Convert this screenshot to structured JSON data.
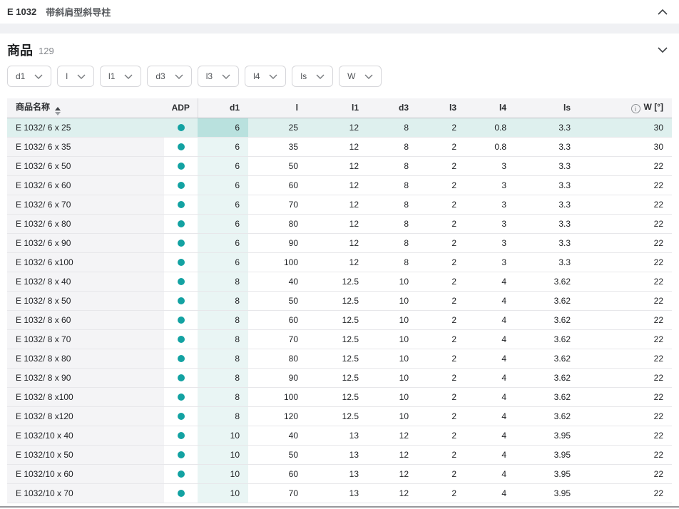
{
  "header": {
    "code": "E 1032",
    "title": "带斜肩型斜导柱"
  },
  "section": {
    "title": "商品",
    "count": "129"
  },
  "filters": {
    "chips": [
      {
        "label": "d1"
      },
      {
        "label": "l"
      },
      {
        "label": "l1"
      },
      {
        "label": "d3"
      },
      {
        "label": "l3"
      },
      {
        "label": "l4"
      },
      {
        "label": "ls"
      },
      {
        "label": "W"
      }
    ]
  },
  "table": {
    "columns": [
      {
        "key": "name",
        "label": "商品名称"
      },
      {
        "key": "adp",
        "label": "ADP"
      },
      {
        "key": "d1",
        "label": "d1"
      },
      {
        "key": "l",
        "label": "l"
      },
      {
        "key": "l1",
        "label": "l1"
      },
      {
        "key": "d3",
        "label": "d3"
      },
      {
        "key": "l3",
        "label": "l3"
      },
      {
        "key": "l4",
        "label": "l4"
      },
      {
        "key": "ls",
        "label": "ls"
      },
      {
        "key": "w",
        "label": "W [°]"
      }
    ],
    "rows": [
      {
        "name": "E 1032/ 6 x 25",
        "adp": true,
        "d1": "6",
        "l": "25",
        "l1": "12",
        "d3": "8",
        "l3": "2",
        "l4": "0.8",
        "ls": "3.3",
        "w": "30",
        "selected": true
      },
      {
        "name": "E 1032/ 6 x 35",
        "adp": true,
        "d1": "6",
        "l": "35",
        "l1": "12",
        "d3": "8",
        "l3": "2",
        "l4": "0.8",
        "ls": "3.3",
        "w": "30",
        "selected": false
      },
      {
        "name": "E 1032/ 6 x 50",
        "adp": true,
        "d1": "6",
        "l": "50",
        "l1": "12",
        "d3": "8",
        "l3": "2",
        "l4": "3",
        "ls": "3.3",
        "w": "22",
        "selected": false
      },
      {
        "name": "E 1032/ 6 x 60",
        "adp": true,
        "d1": "6",
        "l": "60",
        "l1": "12",
        "d3": "8",
        "l3": "2",
        "l4": "3",
        "ls": "3.3",
        "w": "22",
        "selected": false
      },
      {
        "name": "E 1032/ 6 x 70",
        "adp": true,
        "d1": "6",
        "l": "70",
        "l1": "12",
        "d3": "8",
        "l3": "2",
        "l4": "3",
        "ls": "3.3",
        "w": "22",
        "selected": false
      },
      {
        "name": "E 1032/ 6 x 80",
        "adp": true,
        "d1": "6",
        "l": "80",
        "l1": "12",
        "d3": "8",
        "l3": "2",
        "l4": "3",
        "ls": "3.3",
        "w": "22",
        "selected": false
      },
      {
        "name": "E 1032/ 6 x 90",
        "adp": true,
        "d1": "6",
        "l": "90",
        "l1": "12",
        "d3": "8",
        "l3": "2",
        "l4": "3",
        "ls": "3.3",
        "w": "22",
        "selected": false
      },
      {
        "name": "E 1032/ 6 x100",
        "adp": true,
        "d1": "6",
        "l": "100",
        "l1": "12",
        "d3": "8",
        "l3": "2",
        "l4": "3",
        "ls": "3.3",
        "w": "22",
        "selected": false
      },
      {
        "name": "E 1032/ 8 x 40",
        "adp": true,
        "d1": "8",
        "l": "40",
        "l1": "12.5",
        "d3": "10",
        "l3": "2",
        "l4": "4",
        "ls": "3.62",
        "w": "22",
        "selected": false
      },
      {
        "name": "E 1032/ 8 x 50",
        "adp": true,
        "d1": "8",
        "l": "50",
        "l1": "12.5",
        "d3": "10",
        "l3": "2",
        "l4": "4",
        "ls": "3.62",
        "w": "22",
        "selected": false
      },
      {
        "name": "E 1032/ 8 x 60",
        "adp": true,
        "d1": "8",
        "l": "60",
        "l1": "12.5",
        "d3": "10",
        "l3": "2",
        "l4": "4",
        "ls": "3.62",
        "w": "22",
        "selected": false
      },
      {
        "name": "E 1032/ 8 x 70",
        "adp": true,
        "d1": "8",
        "l": "70",
        "l1": "12.5",
        "d3": "10",
        "l3": "2",
        "l4": "4",
        "ls": "3.62",
        "w": "22",
        "selected": false
      },
      {
        "name": "E 1032/ 8 x 80",
        "adp": true,
        "d1": "8",
        "l": "80",
        "l1": "12.5",
        "d3": "10",
        "l3": "2",
        "l4": "4",
        "ls": "3.62",
        "w": "22",
        "selected": false
      },
      {
        "name": "E 1032/ 8 x 90",
        "adp": true,
        "d1": "8",
        "l": "90",
        "l1": "12.5",
        "d3": "10",
        "l3": "2",
        "l4": "4",
        "ls": "3.62",
        "w": "22",
        "selected": false
      },
      {
        "name": "E 1032/ 8 x100",
        "adp": true,
        "d1": "8",
        "l": "100",
        "l1": "12.5",
        "d3": "10",
        "l3": "2",
        "l4": "4",
        "ls": "3.62",
        "w": "22",
        "selected": false
      },
      {
        "name": "E 1032/ 8 x120",
        "adp": true,
        "d1": "8",
        "l": "120",
        "l1": "12.5",
        "d3": "10",
        "l3": "2",
        "l4": "4",
        "ls": "3.62",
        "w": "22",
        "selected": false
      },
      {
        "name": "E 1032/10 x 40",
        "adp": true,
        "d1": "10",
        "l": "40",
        "l1": "13",
        "d3": "12",
        "l3": "2",
        "l4": "4",
        "ls": "3.95",
        "w": "22",
        "selected": false
      },
      {
        "name": "E 1032/10 x 50",
        "adp": true,
        "d1": "10",
        "l": "50",
        "l1": "13",
        "d3": "12",
        "l3": "2",
        "l4": "4",
        "ls": "3.95",
        "w": "22",
        "selected": false
      },
      {
        "name": "E 1032/10 x 60",
        "adp": true,
        "d1": "10",
        "l": "60",
        "l1": "13",
        "d3": "12",
        "l3": "2",
        "l4": "4",
        "ls": "3.95",
        "w": "22",
        "selected": false
      },
      {
        "name": "E 1032/10 x 70",
        "adp": true,
        "d1": "10",
        "l": "70",
        "l1": "13",
        "d3": "12",
        "l3": "2",
        "l4": "4",
        "ls": "3.95",
        "w": "22",
        "selected": false
      }
    ]
  },
  "icons": {
    "info": "i"
  },
  "colors": {
    "accent": "#13a2a2",
    "selected_row": "#def0ee",
    "selected_d1_cell": "#b9e1de",
    "d1_column": "#e9f5f4",
    "name_column": "#f4f4f6",
    "header_bg": "#f4f4f6"
  }
}
